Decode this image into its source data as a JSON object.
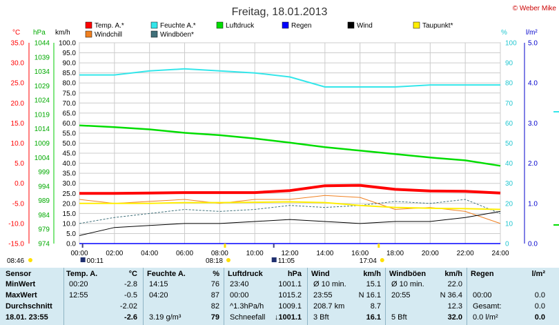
{
  "page": {
    "title": "Freitag, 18.01.2013",
    "credit": "© Weber Mike"
  },
  "colors": {
    "temp": "#ff0000",
    "humidity": "#33e6ea",
    "pressure": "#00dd00",
    "rain": "#0000ff",
    "wind": "#000000",
    "dewpoint": "#ffee00",
    "windchill": "#f08020",
    "gusts": "#40707a",
    "grid": "#cccccc"
  },
  "legend": [
    {
      "label": "Temp. A.*",
      "color": "#ff0000"
    },
    {
      "label": "Feuchte A.*",
      "color": "#33e6ea"
    },
    {
      "label": "Luftdruck",
      "color": "#00dd00"
    },
    {
      "label": "Regen",
      "color": "#0000ff"
    },
    {
      "label": "Wind",
      "color": "#000000"
    },
    {
      "label": "Taupunkt*",
      "color": "#ffee00"
    },
    {
      "label": "Windchill",
      "color": "#f08020"
    },
    {
      "label": "Windböen*",
      "color": "#40707a"
    }
  ],
  "axes": {
    "temp": {
      "unit": "°C",
      "ticks": [
        "35.0",
        "30.0",
        "25.0",
        "20.0",
        "15.0",
        "10.0",
        "5.0",
        "0.0",
        "-5.0",
        "-10.0",
        "-15.0"
      ]
    },
    "pressure": {
      "unit": "hPa",
      "ticks": [
        "1044",
        "1039",
        "1034",
        "1029",
        "1024",
        "1019",
        "1014",
        "1009",
        "1004",
        "999",
        "994",
        "989",
        "984",
        "979",
        "974"
      ]
    },
    "wind": {
      "unit": "km/h",
      "ticks": [
        "100.0",
        "95.0",
        "90.0",
        "85.0",
        "80.0",
        "75.0",
        "70.0",
        "65.0",
        "60.0",
        "55.0",
        "50.0",
        "45.0",
        "40.0",
        "35.0",
        "30.0",
        "25.0",
        "20.0",
        "15.0",
        "10.0",
        "5.0",
        "0.0"
      ]
    },
    "humidity": {
      "unit": "%",
      "ticks": [
        "100",
        "90",
        "80",
        "70",
        "60",
        "50",
        "40",
        "30",
        "20",
        "10",
        "0"
      ]
    },
    "rain": {
      "unit": "l/m²",
      "ticks": [
        "5.0",
        "4.0",
        "3.0",
        "2.0",
        "1.0",
        "0.0"
      ]
    },
    "time": {
      "ticks": [
        "00:00",
        "02:00",
        "04:00",
        "06:00",
        "08:00",
        "10:00",
        "12:00",
        "14:00",
        "16:00",
        "18:00",
        "20:00",
        "22:00",
        "24:00"
      ]
    }
  },
  "markers": {
    "sunrise": "08:18",
    "sunset": "17:04",
    "moonrise": "11:05",
    "moonset": "00:11",
    "daylen": "08:46"
  },
  "chart_data": {
    "type": "line",
    "title": "Freitag, 18.01.2013",
    "x": [
      "00:00",
      "02:00",
      "04:00",
      "06:00",
      "08:00",
      "10:00",
      "12:00",
      "14:00",
      "16:00",
      "18:00",
      "20:00",
      "22:00",
      "24:00"
    ],
    "series": [
      {
        "name": "Temp. A.*",
        "unit": "°C",
        "values": [
          -2.5,
          -2.5,
          -2.4,
          -2.3,
          -2.3,
          -2.3,
          -1.8,
          -0.6,
          -0.5,
          -1.5,
          -1.9,
          -2.0,
          -2.4
        ]
      },
      {
        "name": "Feuchte A.*",
        "unit": "%",
        "values": [
          84,
          84,
          86,
          87,
          86,
          85,
          83,
          78,
          78,
          78,
          79,
          79,
          79
        ]
      },
      {
        "name": "Luftdruck",
        "unit": "hPa",
        "values": [
          1015.2,
          1014.6,
          1013.8,
          1012.6,
          1011.8,
          1010.6,
          1009.2,
          1007.6,
          1006.4,
          1005.2,
          1004.0,
          1003.0,
          1001.1
        ]
      },
      {
        "name": "Wind",
        "unit": "km/h",
        "values": [
          4,
          8,
          9,
          10,
          10,
          11,
          12,
          11,
          10,
          11,
          11,
          13,
          16
        ]
      },
      {
        "name": "Taupunkt*",
        "unit": "°C",
        "values": [
          -5.0,
          -5.0,
          -5.0,
          -4.8,
          -4.8,
          -4.7,
          -4.6,
          -4.8,
          -5.5,
          -6.0,
          -6.2,
          -6.3,
          -6.5
        ]
      },
      {
        "name": "Windchill",
        "unit": "°C",
        "values": [
          -4.0,
          -5.0,
          -4.5,
          -4.0,
          -5.0,
          -4.0,
          -4.0,
          -3.0,
          -3.5,
          -6.5,
          -6.0,
          -7.0,
          -10.0
        ]
      },
      {
        "name": "Windböen*",
        "unit": "km/h",
        "values": [
          10,
          13,
          15,
          17,
          16,
          17,
          19,
          18,
          19,
          21,
          20,
          22,
          15
        ]
      },
      {
        "name": "Regen",
        "unit": "l/m²",
        "values": [
          0,
          0,
          0,
          0,
          0,
          0,
          0,
          0,
          0,
          0,
          0,
          0,
          0
        ]
      }
    ]
  },
  "table": {
    "headers": {
      "sensor": "Sensor",
      "temp": "Temp. A.",
      "temp_unit": "°C",
      "hum": "Feuchte A.",
      "hum_unit": "%",
      "press": "Luftdruck",
      "press_unit": "hPa",
      "wind": "Wind",
      "wind_unit": "km/h",
      "gust": "Windböen",
      "gust_unit": "km/h",
      "rain": "Regen",
      "rain_unit": "l/m²"
    },
    "rows": [
      {
        "label": "MinWert",
        "temp_t": "00:20",
        "temp_v": "-2.8",
        "hum_t": "14:15",
        "hum_v": "76",
        "press_t": "23:40",
        "press_v": "1001.1",
        "wind_t": "Ø 10 min.",
        "wind_v": "15.1",
        "gust_t": "Ø 10 min.",
        "gust_v": "22.0",
        "rain_t": "",
        "rain_v": ""
      },
      {
        "label": "MaxWert",
        "temp_t": "12:55",
        "temp_v": "-0.5",
        "hum_t": "04:20",
        "hum_v": "87",
        "press_t": "00:00",
        "press_v": "1015.2",
        "wind_t": "23:55",
        "wind_v": "N 16.1",
        "gust_t": "20:55",
        "gust_v": "N 36.4",
        "rain_t": "00:00",
        "rain_v": "0.0"
      },
      {
        "label": "Durchschnitt",
        "temp_t": "",
        "temp_v": "-2.02",
        "hum_t": "",
        "hum_v": "82",
        "press_t": "^1.3hPa/h",
        "press_v": "1009.1",
        "wind_t": "208.7 km",
        "wind_v": "8.7",
        "gust_t": "",
        "gust_v": "12.3",
        "rain_t": "Gesamt:",
        "rain_v": "0.0"
      },
      {
        "label": "18.01. 23:55",
        "temp_t": "",
        "temp_v": "-2.6",
        "hum_t": "3.19 g/m³",
        "hum_v": "79",
        "press_t": "Schneefall",
        "press_v": "↓1001.1",
        "wind_t": "3 Bft",
        "wind_v": "16.1",
        "gust_t": "5 Bft",
        "gust_v": "32.0",
        "rain_t": "0.0 l/m²",
        "rain_v": "0.0"
      }
    ]
  }
}
